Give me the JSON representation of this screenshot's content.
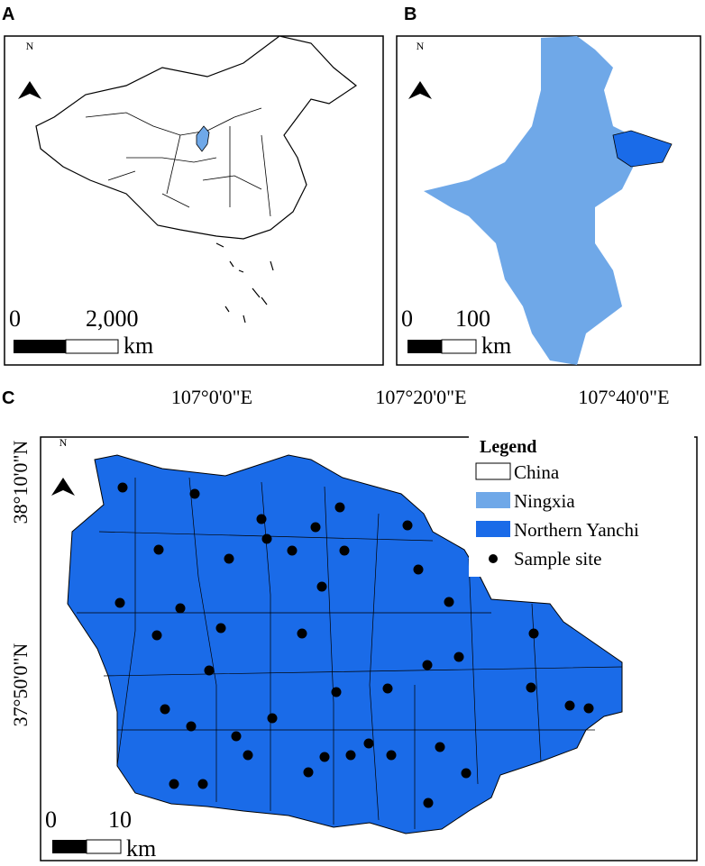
{
  "panels": [
    {
      "label": "A",
      "north": "N",
      "scale": {
        "start": "0",
        "end": "2,000",
        "unit": "km"
      }
    },
    {
      "label": "B",
      "north": "N",
      "scale": {
        "start": "0",
        "end": "100",
        "unit": "km"
      }
    },
    {
      "label": "C",
      "north": "N",
      "scale": {
        "start": "0",
        "end": "10",
        "unit": "km"
      },
      "top_coords": [
        "107°0'0\"E",
        "107°20'0\"E",
        "107°40'0\"E"
      ],
      "left_coords": [
        "38°10'0\"N",
        "37°50'0\"N"
      ],
      "legend": {
        "title": "Legend",
        "items": [
          "China",
          "Ningxia",
          "Northern Yanchi",
          "Sample site"
        ]
      }
    }
  ]
}
